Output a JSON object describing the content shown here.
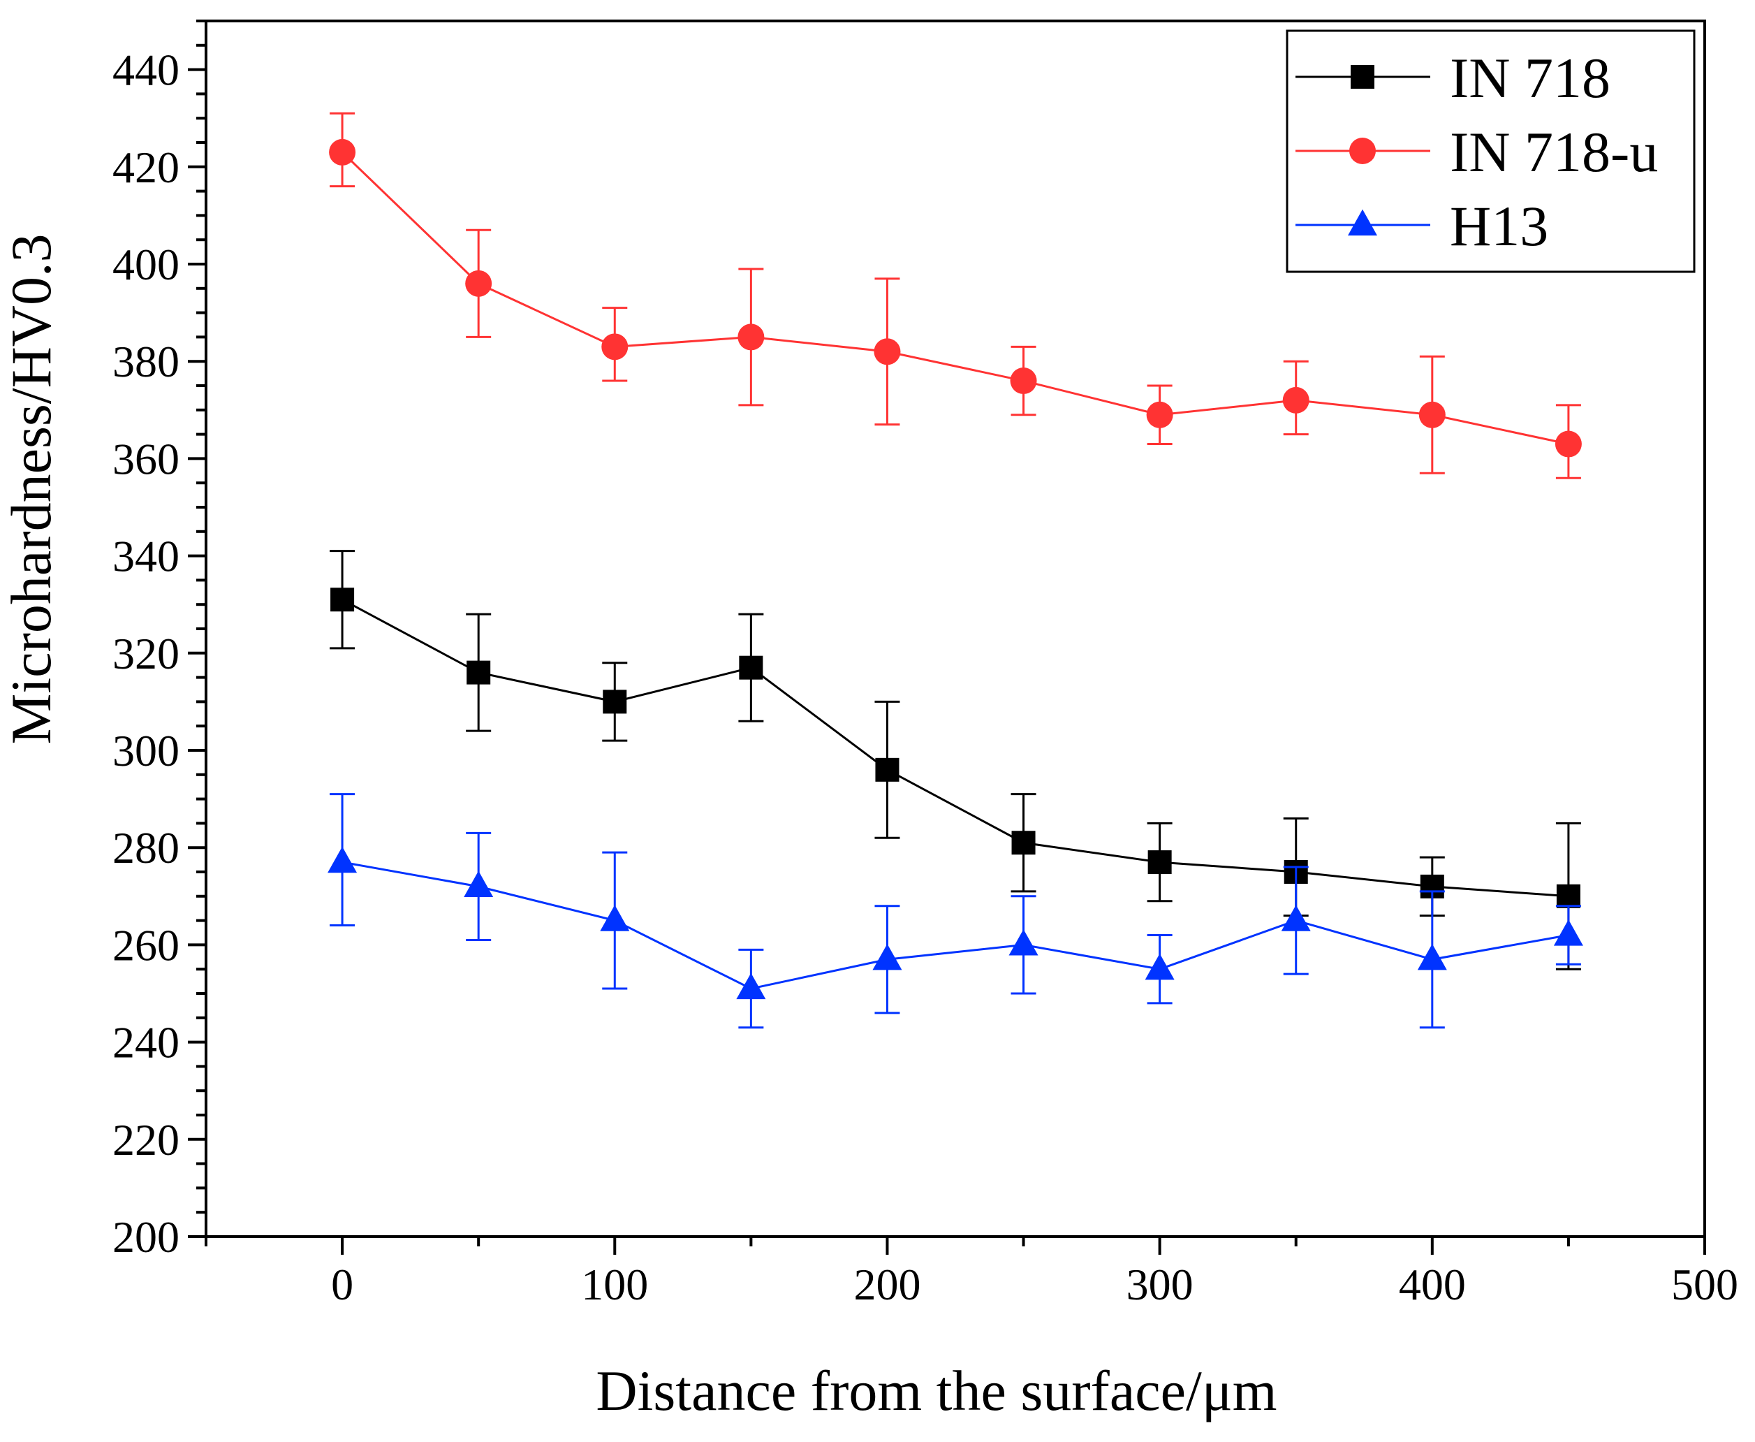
{
  "chart_data": {
    "type": "line",
    "title": "",
    "xlabel": "Distance from the surface/μm",
    "ylabel": "Microhardness/HV0.3",
    "xlim": [
      -50,
      500
    ],
    "ylim": [
      200,
      450
    ],
    "x_ticks": [
      0,
      100,
      200,
      300,
      400,
      500
    ],
    "x_tick_labels": [
      "0",
      "100",
      "200",
      "300",
      "400",
      "500"
    ],
    "y_ticks": [
      200,
      220,
      240,
      260,
      280,
      300,
      320,
      340,
      360,
      380,
      400,
      420,
      440
    ],
    "y_tick_labels": [
      "200",
      "220",
      "240",
      "260",
      "280",
      "300",
      "320",
      "340",
      "360",
      "380",
      "400",
      "420",
      "440"
    ],
    "legend_position": "top-right",
    "grid": false,
    "x": [
      0,
      50,
      100,
      150,
      200,
      250,
      300,
      350,
      400,
      450
    ],
    "series": [
      {
        "name": "IN 718",
        "color": "#000000",
        "marker": "square",
        "values": [
          331,
          316,
          310,
          317,
          296,
          281,
          277,
          275,
          272,
          270
        ],
        "error_low": [
          321,
          304,
          302,
          306,
          282,
          271,
          269,
          266,
          266,
          255
        ],
        "error_high": [
          341,
          328,
          318,
          328,
          310,
          291,
          285,
          286,
          278,
          285
        ]
      },
      {
        "name": "IN 718-u",
        "color": "#ff3333",
        "marker": "circle",
        "values": [
          423,
          396,
          383,
          385,
          382,
          376,
          369,
          372,
          369,
          363
        ],
        "error_low": [
          416,
          385,
          376,
          371,
          367,
          369,
          363,
          365,
          357,
          356
        ],
        "error_high": [
          431,
          407,
          391,
          399,
          397,
          383,
          375,
          380,
          381,
          371
        ]
      },
      {
        "name": "H13",
        "color": "#0033ff",
        "marker": "triangle",
        "values": [
          277,
          272,
          265,
          251,
          257,
          260,
          255,
          265,
          257,
          262
        ],
        "error_low": [
          264,
          261,
          251,
          243,
          246,
          250,
          248,
          254,
          243,
          256
        ],
        "error_high": [
          291,
          283,
          279,
          259,
          268,
          270,
          262,
          276,
          271,
          268
        ]
      }
    ]
  }
}
